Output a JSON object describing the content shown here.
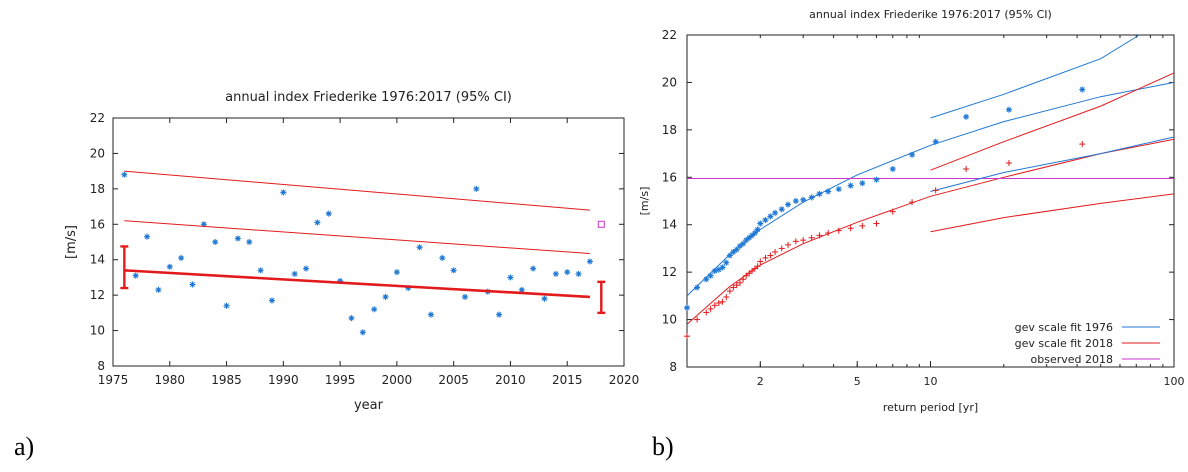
{
  "panel_labels": [
    "a)",
    "b)"
  ],
  "chart_data": [
    {
      "type": "scatter",
      "title": "annual index Friederike 1976:2017 (95% CI)",
      "xlabel": "year",
      "ylabel": "[m/s]",
      "xlim": [
        1975,
        2020
      ],
      "ylim": [
        8,
        22
      ],
      "xticks": [
        1975,
        1980,
        1985,
        1990,
        1995,
        2000,
        2005,
        2010,
        2015,
        2020
      ],
      "yticks": [
        8,
        10,
        12,
        14,
        16,
        18,
        20,
        22
      ],
      "grid": false,
      "legend": "none",
      "colors": {
        "points": "#1f78d4",
        "fit": "#e31a1c",
        "observed": "#cc33cc"
      },
      "series": [
        {
          "type": "scatter",
          "x": [
            1976,
            1977,
            1978,
            1979,
            1980,
            1981,
            1982,
            1983,
            1984,
            1985,
            1986,
            1987,
            1988,
            1989,
            1990,
            1991,
            1992,
            1993,
            1994,
            1995,
            1996,
            1997,
            1998,
            1999,
            2000,
            2001,
            2002,
            2003,
            2004,
            2005,
            2006,
            2007,
            2008,
            2009,
            2010,
            2011,
            2012,
            2013,
            2014,
            2015,
            2016,
            2017
          ],
          "y": [
            18.8,
            13.1,
            15.3,
            12.3,
            13.6,
            14.1,
            12.6,
            16.0,
            15.0,
            11.4,
            15.2,
            15.0,
            13.4,
            11.7,
            17.8,
            13.2,
            13.5,
            16.1,
            16.6,
            12.8,
            10.7,
            9.9,
            11.2,
            11.9,
            13.3,
            12.4,
            14.7,
            10.9,
            14.1,
            13.4,
            11.9,
            18.0,
            12.2,
            10.9,
            13.0,
            12.3,
            13.5,
            11.8,
            13.2,
            13.3,
            13.2,
            13.9
          ]
        },
        {
          "type": "line",
          "x": [
            1976,
            2017
          ],
          "y": [
            13.4,
            11.9
          ],
          "width": "thick"
        },
        {
          "type": "line",
          "x": [
            1976,
            2017
          ],
          "y": [
            16.2,
            14.35
          ]
        },
        {
          "type": "line",
          "x": [
            1976,
            2017
          ],
          "y": [
            19.0,
            16.8
          ]
        },
        {
          "type": "errorbar",
          "x": 1976,
          "y": 13.4,
          "low": 12.4,
          "high": 14.75
        },
        {
          "type": "errorbar",
          "x": 2018,
          "y": 11.9,
          "low": 11.0,
          "high": 12.75
        },
        {
          "type": "marker",
          "x": 2018,
          "y": 16.0
        }
      ]
    },
    {
      "type": "line",
      "title": "annual index Friederike 1976:2017 (95% CI)",
      "xlabel": "return period [yr]",
      "ylabel": "[m/s]",
      "xscale": "log",
      "xlim": [
        1,
        100
      ],
      "ylim": [
        8,
        22
      ],
      "xticks": [
        2,
        5,
        10,
        100
      ],
      "yticks": [
        8,
        10,
        12,
        14,
        16,
        18,
        20,
        22
      ],
      "grid": false,
      "legend": "bottom-right",
      "colors": {
        "fit1976": "#1f78d4",
        "fit2018": "#e31a1c",
        "observed": "#cc33cc"
      },
      "series": [
        {
          "name": "gev scale fit 1976",
          "color": "#1f78d4",
          "x": [
            1,
            1.5,
            2,
            3,
            5,
            10,
            20,
            50,
            100
          ],
          "y": [
            11.0,
            12.75,
            13.8,
            14.95,
            16.1,
            17.35,
            18.35,
            19.4,
            20.0
          ]
        },
        {
          "name": "gev scale fit 2018",
          "color": "#e31a1c",
          "x": [
            1,
            1.5,
            2,
            3,
            5,
            10,
            20,
            50,
            100
          ],
          "y": [
            9.8,
            11.4,
            12.3,
            13.2,
            14.1,
            15.2,
            16.0,
            17.0,
            17.6
          ]
        },
        {
          "name": "observed 2018",
          "color": "#cc33cc",
          "x": [
            1,
            100
          ],
          "y": [
            15.95,
            15.95
          ]
        }
      ],
      "ci_lines": [
        {
          "color": "#1f78d4",
          "x": [
            10,
            20,
            50,
            72
          ],
          "y": [
            18.5,
            19.5,
            21.0,
            22.0
          ]
        },
        {
          "color": "#1f78d4",
          "x": [
            10,
            20,
            50,
            100
          ],
          "y": [
            15.4,
            16.2,
            17.0,
            17.7
          ]
        },
        {
          "color": "#e31a1c",
          "x": [
            10,
            20,
            50,
            100
          ],
          "y": [
            16.3,
            17.5,
            19.0,
            20.4
          ]
        },
        {
          "color": "#e31a1c",
          "x": [
            10,
            20,
            50,
            100
          ],
          "y": [
            13.7,
            14.3,
            14.9,
            15.3
          ]
        }
      ],
      "points_1976": {
        "x": [
          1,
          1.1,
          1.2,
          1.25,
          1.3,
          1.35,
          1.4,
          1.45,
          1.5,
          1.55,
          1.6,
          1.65,
          1.7,
          1.75,
          1.8,
          1.85,
          1.9,
          1.95,
          2,
          2.1,
          2.2,
          2.3,
          2.45,
          2.6,
          2.8,
          3,
          3.25,
          3.5,
          3.8,
          4.2,
          4.7,
          5.25,
          6,
          7,
          8.4,
          10.5,
          14,
          21,
          42
        ],
        "y": [
          10.5,
          11.35,
          11.7,
          11.85,
          12.05,
          12.1,
          12.2,
          12.4,
          12.7,
          12.85,
          12.95,
          13.1,
          13.2,
          13.35,
          13.45,
          13.55,
          13.65,
          13.8,
          14.05,
          14.2,
          14.35,
          14.5,
          14.65,
          14.85,
          15.0,
          15.05,
          15.15,
          15.3,
          15.4,
          15.5,
          15.65,
          15.75,
          15.9,
          16.35,
          16.95,
          17.5,
          18.55,
          18.85,
          19.7
        ]
      },
      "points_2018": {
        "x": [
          1,
          1.1,
          1.2,
          1.25,
          1.3,
          1.35,
          1.4,
          1.45,
          1.5,
          1.55,
          1.6,
          1.65,
          1.7,
          1.75,
          1.8,
          1.85,
          1.9,
          1.95,
          2,
          2.1,
          2.2,
          2.3,
          2.45,
          2.6,
          2.8,
          3,
          3.25,
          3.5,
          3.8,
          4.2,
          4.7,
          5.25,
          6,
          7,
          8.4,
          10.5,
          14,
          21,
          42
        ],
        "y": [
          9.3,
          10.0,
          10.3,
          10.45,
          10.6,
          10.7,
          10.75,
          10.95,
          11.2,
          11.35,
          11.45,
          11.55,
          11.7,
          11.85,
          11.95,
          12.05,
          12.15,
          12.25,
          12.45,
          12.6,
          12.7,
          12.85,
          13.0,
          13.15,
          13.3,
          13.35,
          13.45,
          13.55,
          13.65,
          13.75,
          13.85,
          13.95,
          14.05,
          14.55,
          14.95,
          15.45,
          16.35,
          16.6,
          17.4
        ]
      }
    }
  ]
}
